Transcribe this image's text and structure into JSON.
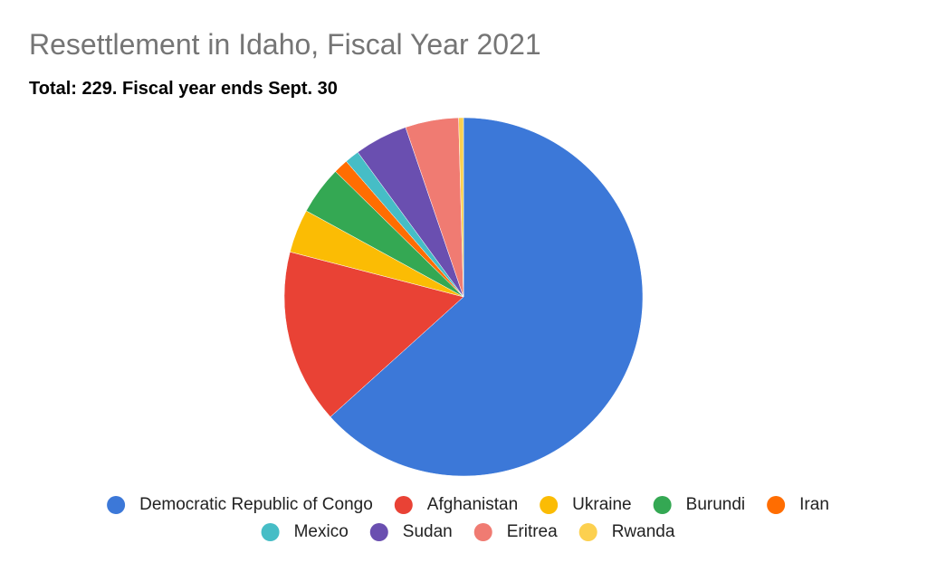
{
  "chart_data": {
    "type": "pie",
    "title": "Resettlement in Idaho, Fiscal Year 2021",
    "subtitle": "Total: 229. Fiscal year ends Sept. 30",
    "categories": [
      "Democratic Republic of Congo",
      "Afghanistan",
      "Ukraine",
      "Burundi",
      "Iran",
      "Mexico",
      "Sudan",
      "Eritrea",
      "Rwanda"
    ],
    "values": [
      145,
      36,
      9,
      10,
      3,
      3,
      11,
      11,
      1
    ],
    "colors": [
      "#3c78d8",
      "#e94235",
      "#fbbc04",
      "#34a853",
      "#ff6d01",
      "#46bdc6",
      "#6a4fb0",
      "#f07b72",
      "#fcd04f"
    ]
  }
}
